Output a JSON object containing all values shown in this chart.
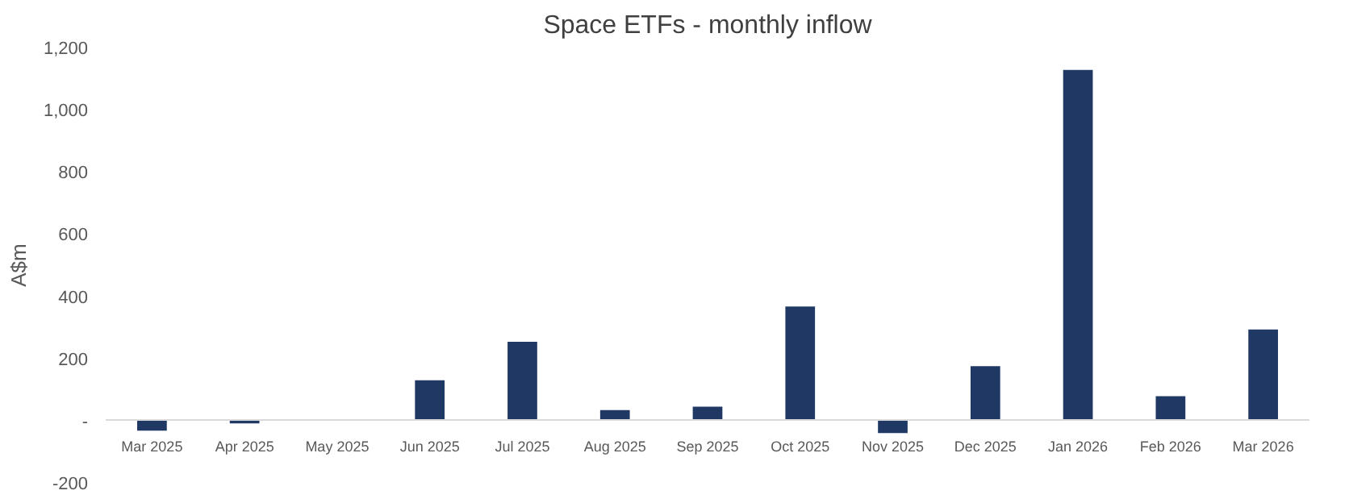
{
  "chart_data": {
    "type": "bar",
    "title": "Space ETFs - monthly inflow",
    "ylabel": "A$m",
    "categories": [
      "Mar 2025",
      "Apr 2025",
      "May 2025",
      "Jun 2025",
      "Jul 2025",
      "Aug 2025",
      "Sep 2025",
      "Oct 2025",
      "Nov 2025",
      "Dec 2025",
      "Jan 2026",
      "Feb 2026",
      "Mar 2026"
    ],
    "values": [
      -32,
      -9,
      0,
      130,
      254,
      34,
      45,
      367,
      -40,
      175,
      1128,
      79,
      293
    ],
    "color": "#203864",
    "ylim": [
      -200,
      1200
    ],
    "yticks": [
      -200,
      {
        "value": 0,
        "label": "-"
      },
      200,
      400,
      600,
      800,
      {
        "value": 1000,
        "label": "1,000"
      },
      {
        "value": 1200,
        "label": "1,200"
      }
    ],
    "grid": false
  }
}
